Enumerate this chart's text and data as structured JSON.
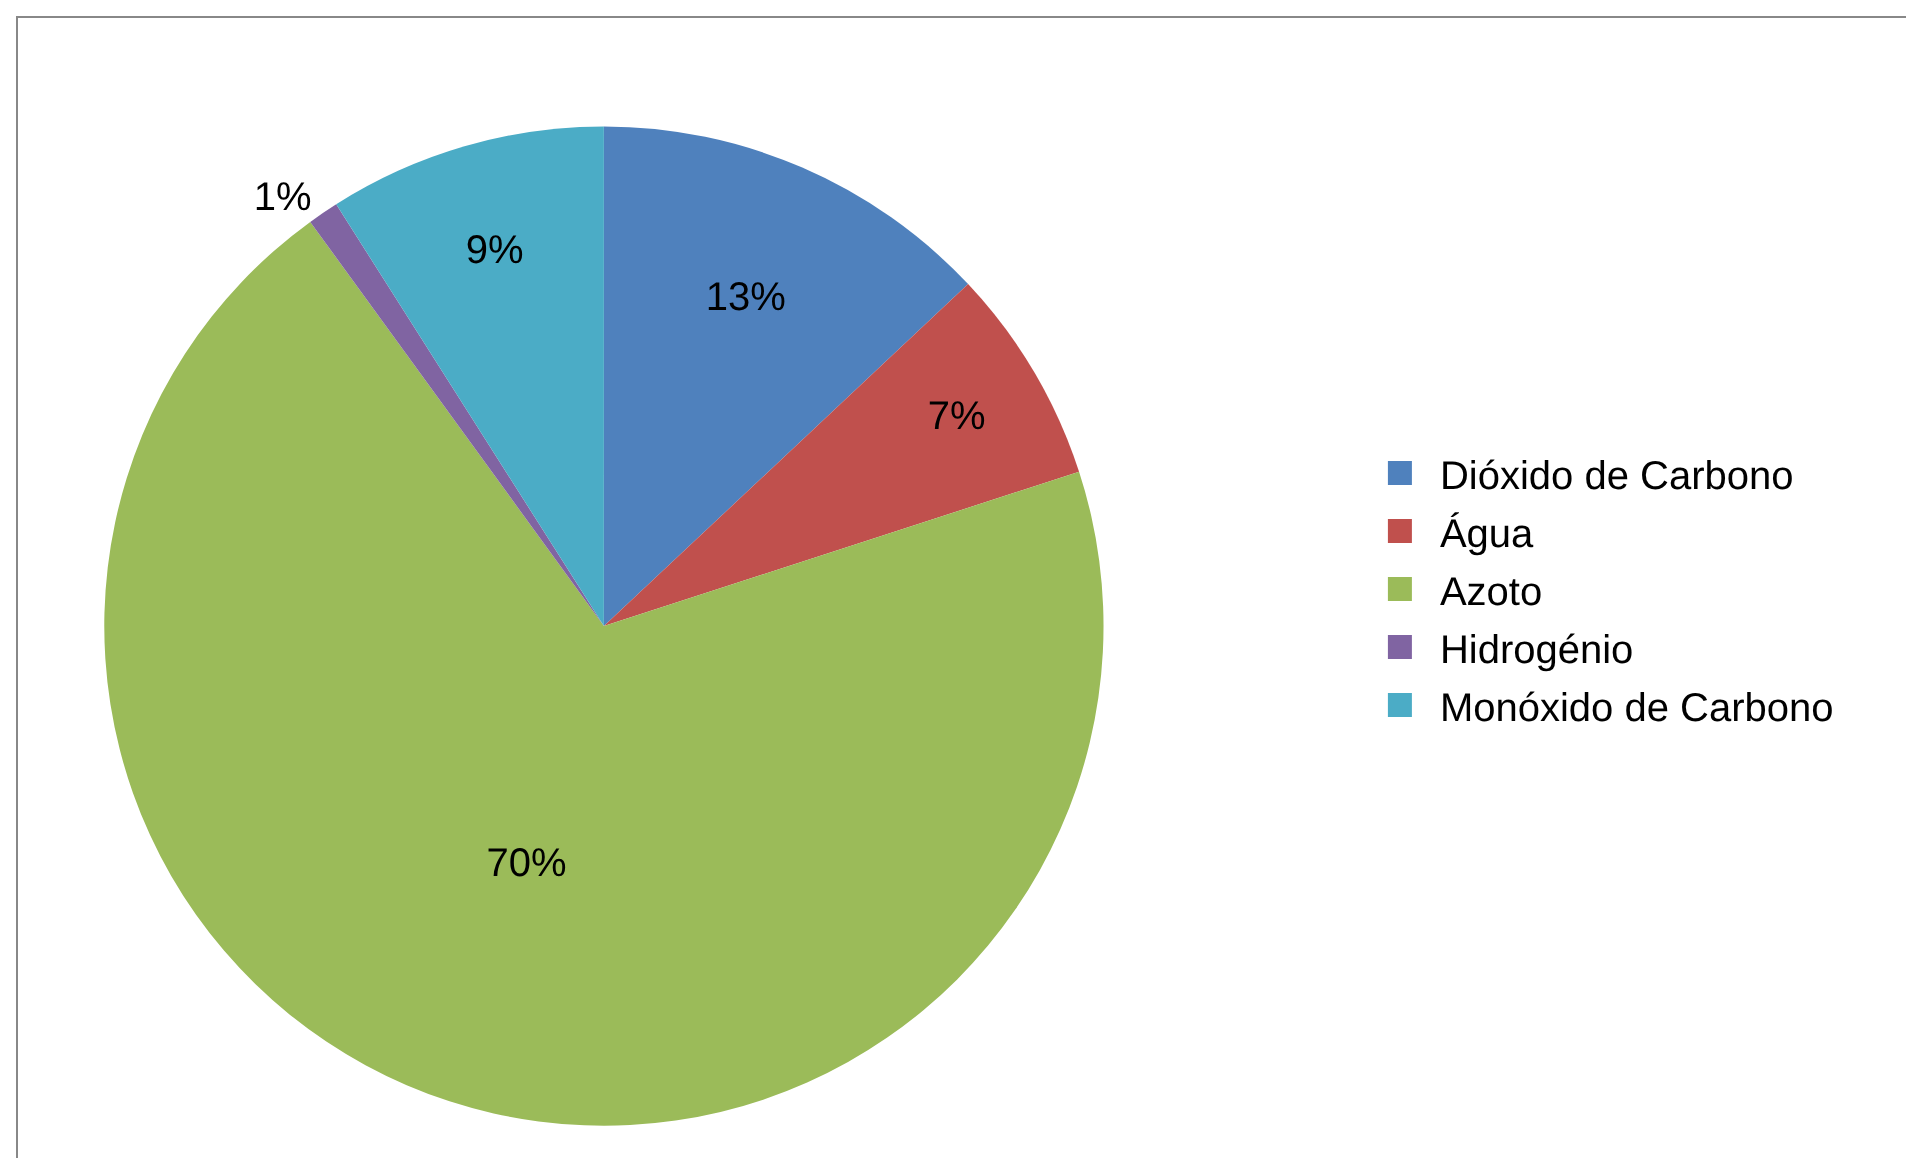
{
  "chart_data": {
    "type": "pie",
    "categories": [
      "Dióxido de Carbono",
      "Água",
      "Azoto",
      "Hidrogénio",
      "Monóxido de Carbono"
    ],
    "values": [
      13,
      7,
      70,
      1,
      9
    ],
    "value_labels": [
      "13%",
      "7%",
      "70%",
      "1%",
      "9%"
    ],
    "colors": [
      "#4f81bd",
      "#c0504d",
      "#9bbb59",
      "#8064a2",
      "#4bacc6"
    ],
    "legend": "right"
  }
}
